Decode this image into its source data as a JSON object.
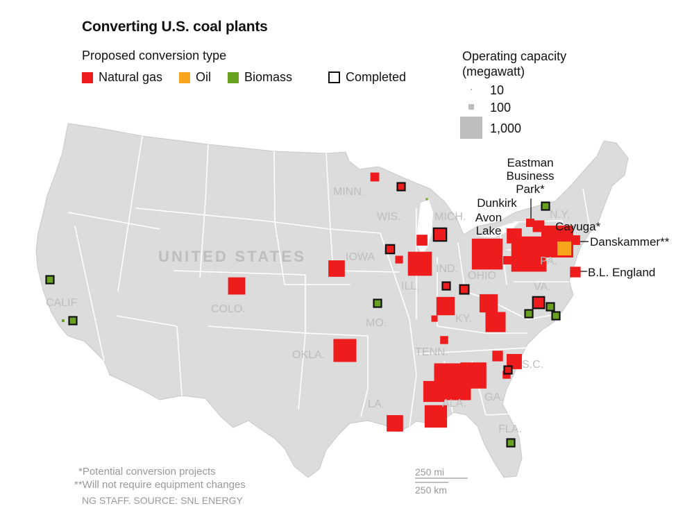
{
  "title": "Converting U.S. coal plants",
  "legend": {
    "heading": "Proposed conversion type",
    "items": [
      {
        "label": "Natural gas",
        "color": "#ee1c1c"
      },
      {
        "label": "Oil",
        "color": "#f7a51c"
      },
      {
        "label": "Biomass",
        "color": "#6aa121"
      }
    ],
    "completed_label": "Completed"
  },
  "capacity": {
    "heading_line1": "Operating capacity",
    "heading_line2": "(megawatt)",
    "values": [
      "10",
      "100",
      "1,000"
    ]
  },
  "country_label": "UNITED STATES",
  "state_labels": {
    "minn": "MINN.",
    "wis": "WIS.",
    "mich": "MICH.",
    "iowa": "IOWA",
    "ill": "ILL.",
    "ind": "IND.",
    "ohio": "OHIO",
    "pa": "PA.",
    "ny": "N.Y.",
    "va": "VA.",
    "ky": "KY.",
    "tenn": "TENN.",
    "sc": "S.C.",
    "ga": "GA.",
    "ala": "ALA.",
    "la": "LA.",
    "fla": "FLA.",
    "mo": "MO.",
    "okla": "OKLA.",
    "colo": "COLO.",
    "calif": "CALIF."
  },
  "plant_labels": {
    "eastman_line1": "Eastman",
    "eastman_line2": "Business",
    "eastman_line3": "Park*",
    "dunkirk": "Dunkirk",
    "avon_line1": "Avon",
    "avon_line2": "Lake",
    "cayuga": "Cayuga*",
    "danskammer": "Danskammer**",
    "bl_england": "B.L. England"
  },
  "footnotes": {
    "potential": "*Potential conversion projects",
    "no_equipment": "**Will not require equipment changes",
    "credit": "NG STAFF. SOURCE: SNL ENERGY"
  },
  "scale": {
    "miles": "250 mi",
    "km": "250 km"
  },
  "colors": {
    "land": "#dcdcdc",
    "border": "#ffffff",
    "gas": "#ee1c1c",
    "oil": "#f7a51c",
    "biomass": "#6aa121",
    "outline": "#111111"
  },
  "plants": [
    {
      "type": "gas",
      "capacity_mw": 160
    },
    {
      "type": "gas",
      "capacity_mw": 240
    },
    {
      "type": "gas",
      "capacity_mw": 1170
    },
    {
      "type": "gas",
      "capacity_mw": 80
    },
    {
      "type": "gas",
      "capacity_mw": 680
    },
    {
      "type": "gas",
      "capacity_mw": 130
    },
    {
      "type": "gas",
      "capacity_mw": 1930
    },
    {
      "type": "gas",
      "capacity_mw": 2510
    },
    {
      "type": "gas",
      "capacity_mw": 140
    },
    {
      "type": "gas",
      "capacity_mw": 460
    },
    {
      "type": "gas",
      "capacity_mw": 280
    },
    {
      "type": "gas",
      "capacity_mw": 2070
    },
    {
      "type": "gas",
      "capacity_mw": 230
    },
    {
      "type": "gas",
      "capacity_mw": 670
    },
    {
      "type": "gas",
      "capacity_mw": 820
    },
    {
      "type": "gas",
      "capacity_mw": 550
    },
    {
      "type": "gas",
      "capacity_mw": 120
    },
    {
      "type": "gas",
      "capacity_mw": 550
    },
    {
      "type": "gas",
      "capacity_mw": 1020
    },
    {
      "type": "gas",
      "capacity_mw": 30
    },
    {
      "type": "gas",
      "capacity_mw": 2740
    },
    {
      "type": "gas",
      "capacity_mw": 130
    },
    {
      "type": "gas",
      "capacity_mw": 230
    },
    {
      "type": "gas",
      "capacity_mw": 1380
    },
    {
      "type": "gas",
      "capacity_mw": 890
    },
    {
      "type": "gas",
      "capacity_mw": 600
    },
    {
      "type": "gas",
      "capacity_mw": 1070
    },
    {
      "type": "gas",
      "capacity_mw": 1020
    },
    {
      "type": "gas",
      "capacity_mw": 470
    },
    {
      "type": "gas",
      "capacity_mw": 5
    },
    {
      "type": "gas",
      "capacity_mw": 190
    },
    {
      "type": "gas",
      "capacity_mw": 140
    },
    {
      "type": "gas",
      "capacity_mw": 70
    },
    {
      "type": "gas",
      "capacity_mw": 390
    },
    {
      "type": "oil",
      "capacity_mw": 390
    },
    {
      "type": "gas",
      "completed": true,
      "capacity_mw": 330
    },
    {
      "type": "gas",
      "completed": true,
      "capacity_mw": 150
    },
    {
      "type": "gas",
      "completed": true,
      "capacity_mw": 270
    },
    {
      "type": "gas",
      "completed": true,
      "capacity_mw": 50
    },
    {
      "type": "gas",
      "completed": true,
      "capacity_mw": 160
    },
    {
      "type": "gas",
      "completed": true,
      "capacity_mw": 80
    },
    {
      "type": "gas",
      "completed": true,
      "capacity_mw": 30
    },
    {
      "type": "biomass",
      "completed": true,
      "capacity_mw": 70
    },
    {
      "type": "biomass",
      "completed": true,
      "capacity_mw": 70
    },
    {
      "type": "biomass",
      "completed": true,
      "capacity_mw": 70
    },
    {
      "type": "biomass",
      "completed": true,
      "capacity_mw": 70
    },
    {
      "type": "biomass",
      "completed": true,
      "capacity_mw": 60
    },
    {
      "type": "biomass",
      "completed": true,
      "capacity_mw": 70
    },
    {
      "type": "biomass",
      "completed": true,
      "capacity_mw": 70
    },
    {
      "type": "biomass",
      "completed": true,
      "capacity_mw": 70
    },
    {
      "type": "biomass",
      "capacity_mw": 15
    },
    {
      "type": "biomass",
      "capacity_mw": 5
    }
  ]
}
